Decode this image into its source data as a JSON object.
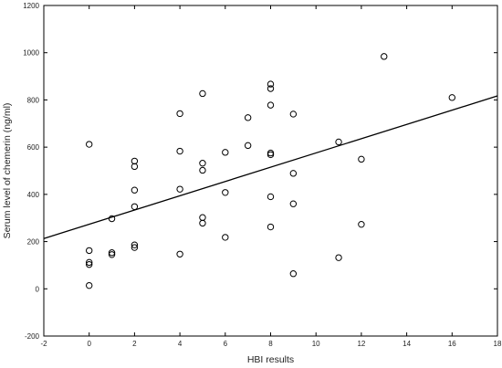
{
  "chart_data": {
    "type": "scatter",
    "title": "",
    "xlabel": "HBI results",
    "ylabel": "Serum level of chemerin (ng/ml)",
    "xlim": [
      -2,
      18
    ],
    "ylim": [
      -200,
      1200
    ],
    "xticks": [
      -2,
      0,
      2,
      4,
      6,
      8,
      10,
      12,
      14,
      16,
      18
    ],
    "yticks": [
      -200,
      0,
      200,
      400,
      600,
      800,
      1000,
      1200
    ],
    "grid": false,
    "legend": "none",
    "series": [
      {
        "marker": "open-circle",
        "color": "#000000",
        "points": [
          [
            0,
            612
          ],
          [
            0,
            162
          ],
          [
            0,
            112
          ],
          [
            0,
            103
          ],
          [
            0,
            14
          ],
          [
            1,
            297
          ],
          [
            1,
            153
          ],
          [
            1,
            145
          ],
          [
            2,
            541
          ],
          [
            2,
            518
          ],
          [
            2,
            418
          ],
          [
            2,
            348
          ],
          [
            2,
            186
          ],
          [
            2,
            175
          ],
          [
            4,
            742
          ],
          [
            4,
            583
          ],
          [
            4,
            422
          ],
          [
            4,
            147
          ],
          [
            5,
            827
          ],
          [
            5,
            532
          ],
          [
            5,
            502
          ],
          [
            5,
            302
          ],
          [
            5,
            278
          ],
          [
            6,
            578
          ],
          [
            6,
            408
          ],
          [
            6,
            218
          ],
          [
            7,
            725
          ],
          [
            7,
            607
          ],
          [
            8,
            867
          ],
          [
            8,
            848
          ],
          [
            8,
            778
          ],
          [
            8,
            575
          ],
          [
            8,
            568
          ],
          [
            8,
            390
          ],
          [
            8,
            262
          ],
          [
            9,
            740
          ],
          [
            9,
            489
          ],
          [
            9,
            360
          ],
          [
            9,
            64
          ],
          [
            11,
            622
          ],
          [
            11,
            132
          ],
          [
            12,
            549
          ],
          [
            12,
            273
          ],
          [
            13,
            984
          ],
          [
            16,
            810
          ]
        ]
      }
    ],
    "regression_line": {
      "color": "#000000",
      "x": [
        -2,
        18
      ],
      "y": [
        213,
        817
      ]
    }
  }
}
